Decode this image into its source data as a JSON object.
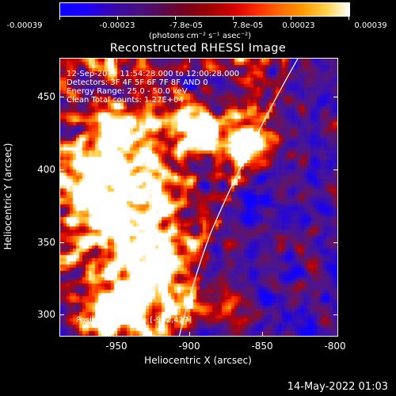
{
  "colorbar": {
    "labels": [
      "-0.00039",
      "-0.00023",
      "-7.8e-05",
      "7.8e-05",
      "0.00023",
      "0.00039"
    ],
    "units": "(photons cm⁻² s⁻¹ asec⁻²)"
  },
  "plot": {
    "title": "Reconstructed RHESSI Image",
    "info_lines": [
      "12-Sep-2011 11:54:28.000 to 12:00:28.000",
      "Detectors: 3F 4F 5F 6F 7F 8F AND 0",
      "Energy Range: 25.0 - 50.0 keV",
      "Clean     Total counts: 1.27E+04"
    ],
    "peak_text": "Position of Peak = [-902,427]",
    "x_axis_title": "Heliocentric X (arcsec)",
    "y_axis_title": "Heliocentric Y (arcsec)",
    "x_ticks": [
      "-950",
      "-900",
      "-850",
      "-800"
    ],
    "y_ticks": [
      "450",
      "400",
      "350",
      "300"
    ],
    "limb_color": "#ffffff"
  },
  "footer": {
    "date": "14-May-2022 01:03"
  }
}
